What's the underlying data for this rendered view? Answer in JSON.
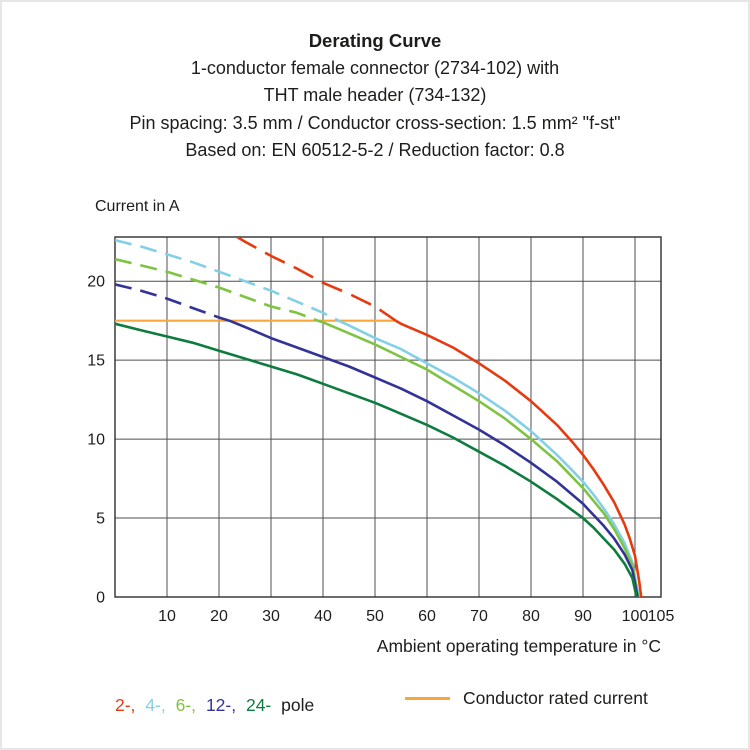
{
  "title_block": {
    "title": "Derating Curve",
    "lines": [
      "1-conductor female connector (2734-102) with",
      "THT male header (734-132)",
      "Pin spacing: 3.5 mm / Conductor cross-section: 1.5 mm² \"f-st\"",
      "Based on: EN 60512-5-2 / Reduction factor: 0.8"
    ]
  },
  "chart_data": {
    "type": "line",
    "title": "Derating Curve",
    "xlabel": "Ambient operating temperature in °C",
    "ylabel": "Current in A",
    "xlim": [
      0,
      105
    ],
    "ylim": [
      0,
      22.8
    ],
    "x_ticks": [
      10,
      20,
      30,
      40,
      50,
      60,
      70,
      80,
      90,
      100,
      105
    ],
    "y_ticks": [
      0,
      5,
      10,
      15,
      20
    ],
    "grid": true,
    "legend_position": "bottom",
    "grid_color": "#4f4f4f",
    "frame_color": "#2e2e2e",
    "rated_current_line": {
      "label": "Conductor rated current",
      "value": 17.5,
      "x_start": 0,
      "x_end": 54,
      "color": "#f9a63a"
    },
    "series": [
      {
        "name": "2-pole",
        "legend_label": "2-,",
        "color": "#e63a11",
        "dash_until": 54,
        "dash_pattern": "22 10",
        "points": [
          [
            23.5,
            22.8
          ],
          [
            25,
            22.5
          ],
          [
            30,
            21.6
          ],
          [
            35,
            20.8
          ],
          [
            40,
            19.9
          ],
          [
            45,
            19.2
          ],
          [
            50,
            18.4
          ],
          [
            54,
            17.5
          ],
          [
            55,
            17.3
          ],
          [
            60,
            16.6
          ],
          [
            65,
            15.8
          ],
          [
            70,
            14.8
          ],
          [
            75,
            13.7
          ],
          [
            80,
            12.4
          ],
          [
            85,
            10.9
          ],
          [
            88,
            9.8
          ],
          [
            90,
            9.0
          ],
          [
            92,
            8.1
          ],
          [
            94,
            7.1
          ],
          [
            96,
            6.0
          ],
          [
            98,
            4.6
          ],
          [
            99,
            3.7
          ],
          [
            100,
            2.6
          ],
          [
            100.8,
            1.0
          ],
          [
            101.2,
            0
          ]
        ]
      },
      {
        "name": "4-pole",
        "legend_label": "4-,",
        "color": "#83d0e6",
        "dash_until": 43,
        "dash_pattern": "17 9",
        "points": [
          [
            0,
            22.6
          ],
          [
            5,
            22.2
          ],
          [
            10,
            21.7
          ],
          [
            15,
            21.2
          ],
          [
            20,
            20.6
          ],
          [
            25,
            20.0
          ],
          [
            30,
            19.4
          ],
          [
            35,
            18.7
          ],
          [
            40,
            18.0
          ],
          [
            43,
            17.5
          ],
          [
            45,
            17.2
          ],
          [
            50,
            16.4
          ],
          [
            55,
            15.7
          ],
          [
            60,
            14.8
          ],
          [
            65,
            13.9
          ],
          [
            70,
            12.9
          ],
          [
            75,
            11.8
          ],
          [
            80,
            10.5
          ],
          [
            85,
            9.0
          ],
          [
            88,
            8.0
          ],
          [
            90,
            7.3
          ],
          [
            92,
            6.5
          ],
          [
            94,
            5.6
          ],
          [
            96,
            4.6
          ],
          [
            98,
            3.4
          ],
          [
            99.5,
            2.2
          ],
          [
            100.7,
            0
          ]
        ]
      },
      {
        "name": "6-pole",
        "legend_label": "6-,",
        "color": "#7fc342",
        "dash_until": 39,
        "dash_pattern": "17 9",
        "points": [
          [
            0,
            21.4
          ],
          [
            5,
            21.0
          ],
          [
            10,
            20.6
          ],
          [
            15,
            20.1
          ],
          [
            20,
            19.6
          ],
          [
            25,
            19.0
          ],
          [
            30,
            18.4
          ],
          [
            35,
            18.0
          ],
          [
            39,
            17.5
          ],
          [
            40,
            17.4
          ],
          [
            45,
            16.7
          ],
          [
            50,
            16.0
          ],
          [
            55,
            15.2
          ],
          [
            60,
            14.4
          ],
          [
            65,
            13.4
          ],
          [
            70,
            12.4
          ],
          [
            75,
            11.3
          ],
          [
            80,
            10.0
          ],
          [
            85,
            8.6
          ],
          [
            90,
            6.9
          ],
          [
            92,
            6.1
          ],
          [
            94,
            5.3
          ],
          [
            96,
            4.3
          ],
          [
            98,
            3.1
          ],
          [
            99.5,
            2.0
          ],
          [
            100.6,
            0
          ]
        ]
      },
      {
        "name": "12-pole",
        "legend_label": "12-,",
        "color": "#333397",
        "dash_until": 22,
        "dash_pattern": "17 9",
        "points": [
          [
            0,
            19.8
          ],
          [
            5,
            19.4
          ],
          [
            10,
            18.9
          ],
          [
            15,
            18.3
          ],
          [
            20,
            17.7
          ],
          [
            22,
            17.5
          ],
          [
            25,
            17.1
          ],
          [
            30,
            16.4
          ],
          [
            35,
            15.8
          ],
          [
            40,
            15.2
          ],
          [
            45,
            14.6
          ],
          [
            50,
            13.9
          ],
          [
            55,
            13.2
          ],
          [
            60,
            12.4
          ],
          [
            65,
            11.5
          ],
          [
            70,
            10.6
          ],
          [
            75,
            9.6
          ],
          [
            80,
            8.5
          ],
          [
            85,
            7.3
          ],
          [
            90,
            5.9
          ],
          [
            92,
            5.2
          ],
          [
            94,
            4.5
          ],
          [
            96,
            3.7
          ],
          [
            98,
            2.7
          ],
          [
            99.5,
            1.7
          ],
          [
            100.5,
            0
          ]
        ]
      },
      {
        "name": "24-pole",
        "legend_label": "24-",
        "color": "#0e7c3e",
        "dash_until": null,
        "dash_pattern": "",
        "points": [
          [
            0,
            17.3
          ],
          [
            5,
            16.9
          ],
          [
            10,
            16.5
          ],
          [
            15,
            16.1
          ],
          [
            20,
            15.6
          ],
          [
            25,
            15.1
          ],
          [
            30,
            14.6
          ],
          [
            35,
            14.1
          ],
          [
            40,
            13.5
          ],
          [
            45,
            12.9
          ],
          [
            50,
            12.3
          ],
          [
            55,
            11.6
          ],
          [
            60,
            10.9
          ],
          [
            65,
            10.1
          ],
          [
            70,
            9.2
          ],
          [
            75,
            8.3
          ],
          [
            80,
            7.3
          ],
          [
            85,
            6.2
          ],
          [
            90,
            5.0
          ],
          [
            92,
            4.4
          ],
          [
            94,
            3.7
          ],
          [
            96,
            3.0
          ],
          [
            98,
            2.1
          ],
          [
            99.5,
            1.2
          ],
          [
            100.3,
            0
          ]
        ]
      }
    ]
  },
  "legend": {
    "pole_entries": [
      {
        "label": "2-,",
        "color": "#e63a11"
      },
      {
        "label": "4-,",
        "color": "#83d0e6"
      },
      {
        "label": "6-,",
        "color": "#7fc342"
      },
      {
        "label": "12-,",
        "color": "#333397"
      },
      {
        "label": "24-",
        "color": "#0e7c3e"
      }
    ],
    "pole_suffix": "pole",
    "rated_label": "Conductor rated current"
  }
}
